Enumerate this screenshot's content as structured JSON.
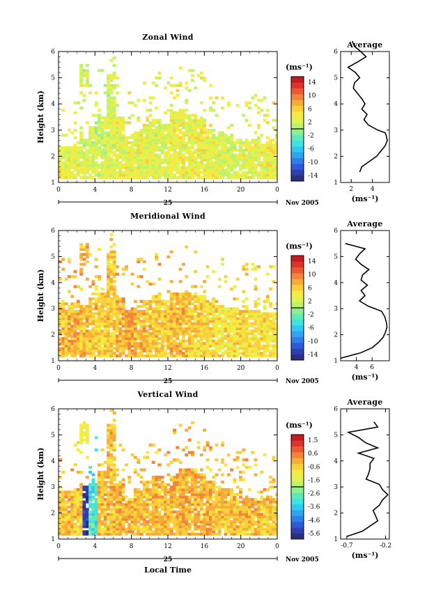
{
  "colorbar_unit": "(ms⁻¹)",
  "avg_unit": "(ms⁻¹)",
  "avg_title": "Average",
  "ylabel": "Height (km)",
  "date_label": "25",
  "month_label": "Nov 2005",
  "xlabel_bottom": "Local Time",
  "colormap": [
    "#2b2f7f",
    "#2f3fb0",
    "#2c5ad8",
    "#2f7fe8",
    "#31a3f0",
    "#2fc8f2",
    "#3ee3e0",
    "#5fe8b8",
    "#8fef8c",
    "#bdf26a",
    "#e2f24e",
    "#f6ea42",
    "#f9cf3c",
    "#f6ac3a",
    "#f2853a",
    "#ec5a34",
    "#e0322c",
    "#c21b23"
  ],
  "chart_data": [
    {
      "type": "heatmap",
      "title": "Zonal Wind",
      "x_ticks": [
        "0",
        "4",
        "8",
        "12",
        "16",
        "20",
        "0"
      ],
      "y_ticks": [
        "1",
        "2",
        "3",
        "4",
        "5",
        "6"
      ],
      "xlim": [
        0,
        24
      ],
      "ylim": [
        1,
        6
      ],
      "colorbar_ticks": [
        "14",
        "10",
        "6",
        "2",
        "-2",
        "-6",
        "-10",
        "-14"
      ],
      "clim": [
        -16,
        16
      ],
      "data_ceiling_km": [
        2.3,
        2.4,
        2.6,
        3.1,
        3.6,
        5.2,
        3.5,
        2.7,
        2.9,
        3.2,
        3.4,
        3.2,
        3.7,
        3.8,
        3.6,
        3.4,
        3.0,
        2.9,
        2.7,
        2.6,
        2.5,
        2.6,
        2.4,
        2.4
      ],
      "field_mean_ms": [
        3.5,
        3.0,
        2.5,
        2.0,
        2.0,
        2.5,
        3.0,
        3.5,
        3.5,
        3.0,
        2.5,
        2.5,
        3.0,
        3.0,
        3.5,
        3.5,
        3.0,
        3.0,
        2.5,
        2.5,
        3.0,
        3.0,
        3.5,
        3.5
      ],
      "average_profile": {
        "height_km": [
          1.4,
          1.6,
          1.8,
          2.0,
          2.2,
          2.4,
          2.6,
          2.8,
          2.9,
          3.0,
          3.2,
          3.4,
          3.6,
          3.8,
          4.0,
          4.2,
          4.4,
          4.6,
          4.8,
          5.0,
          5.2,
          5.4,
          5.6,
          5.8,
          6.0,
          6.2,
          6.4
        ],
        "value_ms": [
          2.8,
          3.0,
          3.7,
          4.4,
          4.8,
          5.2,
          5.4,
          5.3,
          5.2,
          4.5,
          3.6,
          3.2,
          3.5,
          3.0,
          3.3,
          3.0,
          2.6,
          2.2,
          2.3,
          2.8,
          2.4,
          1.7,
          2.6,
          3.4,
          2.9,
          2.3,
          2.1
        ],
        "xlim": [
          1.0,
          5.6
        ],
        "x_ticks": [
          2,
          4
        ]
      }
    },
    {
      "type": "heatmap",
      "title": "Meridional Wind",
      "x_ticks": [
        "0",
        "4",
        "8",
        "12",
        "16",
        "20",
        "0"
      ],
      "y_ticks": [
        "1",
        "2",
        "3",
        "4",
        "5",
        "6"
      ],
      "xlim": [
        0,
        24
      ],
      "ylim": [
        1,
        6
      ],
      "colorbar_ticks": [
        "14",
        "10",
        "6",
        "2",
        "-2",
        "-6",
        "-10",
        "-14"
      ],
      "clim": [
        -16,
        16
      ],
      "data_ceiling_km": [
        3.2,
        3.2,
        3.1,
        3.4,
        3.6,
        5.2,
        3.4,
        2.9,
        3.1,
        3.3,
        3.5,
        3.3,
        3.6,
        3.6,
        3.6,
        3.5,
        3.3,
        3.1,
        3.0,
        3.0,
        2.9,
        2.9,
        2.8,
        2.8
      ],
      "field_mean_ms": [
        7.0,
        7.5,
        7.0,
        6.5,
        6.0,
        6.5,
        7.5,
        8.0,
        7.5,
        7.0,
        6.5,
        6.5,
        7.0,
        6.5,
        6.0,
        5.5,
        5.5,
        5.0,
        5.0,
        5.5,
        5.5,
        5.0,
        5.0,
        5.0
      ],
      "average_profile": {
        "height_km": [
          1.1,
          1.3,
          1.5,
          1.7,
          1.9,
          2.1,
          2.3,
          2.5,
          2.7,
          2.9,
          3.1,
          3.3,
          3.5,
          3.7,
          3.9,
          4.1,
          4.3,
          4.5,
          4.7,
          4.9,
          5.1,
          5.3,
          5.5
        ],
        "value_ms": [
          2.0,
          4.5,
          6.0,
          6.8,
          7.4,
          7.7,
          7.9,
          7.8,
          7.6,
          7.2,
          5.5,
          4.4,
          5.1,
          4.6,
          5.4,
          4.6,
          4.8,
          5.6,
          4.6,
          3.9,
          4.4,
          5.1,
          2.6
        ],
        "xlim": [
          2.0,
          8.2
        ],
        "x_ticks": [
          4,
          6
        ]
      }
    },
    {
      "type": "heatmap",
      "title": "Vertical Wind",
      "x_ticks": [
        "0",
        "4",
        "8",
        "12",
        "16",
        "20",
        "0"
      ],
      "y_ticks": [
        "1",
        "2",
        "3",
        "4",
        "5",
        "6"
      ],
      "xlim": [
        0,
        24
      ],
      "ylim": [
        1,
        6
      ],
      "colorbar_ticks": [
        "1.5",
        "0.6",
        "-0.6",
        "-1.6",
        "-2.6",
        "-3.6",
        "-4.6",
        "-5.6"
      ],
      "clim": [
        -6.1,
        2.0
      ],
      "data_ceiling_km": [
        2.8,
        2.9,
        3.0,
        3.1,
        3.6,
        5.4,
        3.1,
        2.6,
        2.9,
        3.2,
        3.4,
        3.1,
        3.5,
        3.7,
        3.7,
        3.5,
        3.2,
        3.0,
        2.9,
        2.7,
        2.6,
        2.5,
        2.6,
        2.5
      ],
      "field_mean_ms": [
        -0.3,
        -0.3,
        -0.3,
        -3.0,
        -0.3,
        -0.3,
        -0.2,
        -0.2,
        -0.3,
        -0.3,
        -0.2,
        -0.2,
        -0.1,
        -0.1,
        -0.2,
        -0.2,
        -0.2,
        -0.3,
        -0.3,
        -0.3,
        -0.3,
        -0.3,
        -0.3,
        -0.3
      ],
      "average_profile": {
        "height_km": [
          1.1,
          1.3,
          1.5,
          1.7,
          1.9,
          2.1,
          2.3,
          2.5,
          2.7,
          2.9,
          3.1,
          3.3,
          3.5,
          3.7,
          3.9,
          4.1,
          4.3,
          4.5,
          4.7,
          4.9,
          5.1,
          5.3,
          5.5
        ],
        "value_ms": [
          -0.7,
          -0.5,
          -0.4,
          -0.3,
          -0.33,
          -0.36,
          -0.28,
          -0.24,
          -0.17,
          -0.24,
          -0.28,
          -0.45,
          -0.42,
          -0.4,
          -0.4,
          -0.35,
          -0.55,
          -0.3,
          -0.46,
          -0.55,
          -0.68,
          -0.3,
          -0.35
        ],
        "xlim": [
          -0.78,
          -0.15
        ],
        "x_ticks_labels": [
          "-0.7",
          "-0.2"
        ],
        "x_ticks": [
          -0.7,
          -0.2
        ]
      }
    }
  ]
}
